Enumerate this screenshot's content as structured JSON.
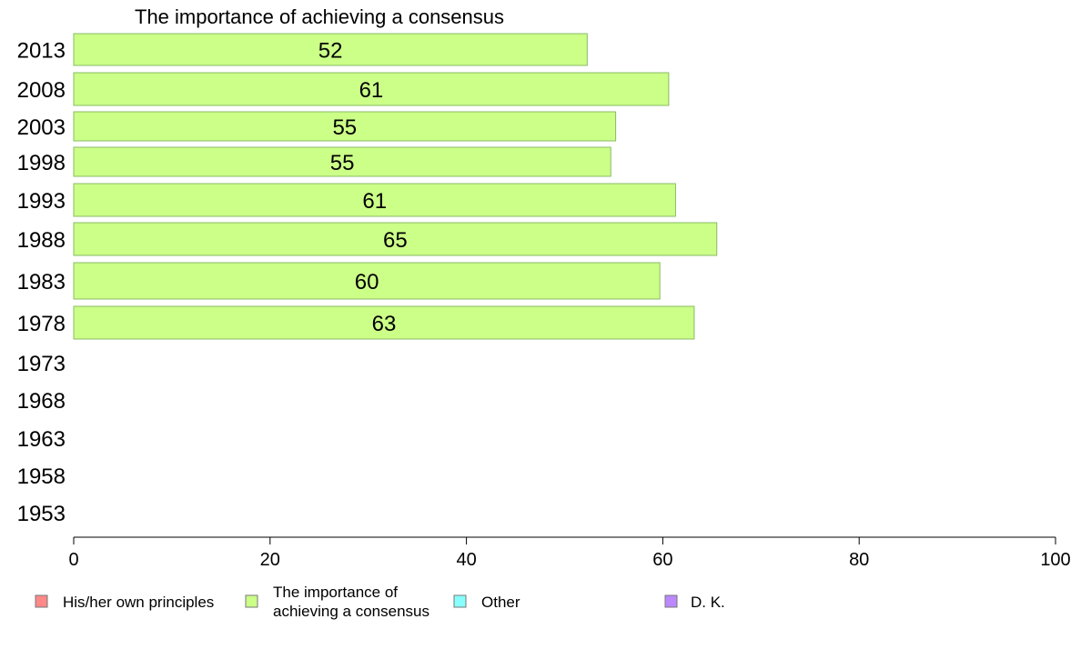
{
  "chart_data": {
    "type": "bar",
    "orientation": "horizontal",
    "title": "The importance of achieving a consensus",
    "categories": [
      "2013",
      "2008",
      "2003",
      "1998",
      "1993",
      "1988",
      "1983",
      "1978",
      "1973",
      "1968",
      "1963",
      "1958",
      "1953"
    ],
    "series": [
      {
        "name": "The importance of achieving a consensus",
        "color": "#ccff88",
        "values": [
          52.3,
          60.6,
          55.2,
          54.7,
          61.3,
          65.5,
          59.7,
          63.2,
          null,
          null,
          null,
          null,
          null
        ],
        "labels": [
          "52",
          "61",
          "55",
          "55",
          "61",
          "65",
          "60",
          "63",
          null,
          null,
          null,
          null,
          null
        ]
      }
    ],
    "xlim": [
      0,
      100
    ],
    "xticks": [
      0,
      20,
      40,
      60,
      80,
      100
    ],
    "grid": false,
    "legend_position": "bottom",
    "legend": [
      {
        "lines": [
          "His/her own principles"
        ],
        "color": "#ff8888"
      },
      {
        "lines": [
          "The importance of",
          "achieving a consensus"
        ],
        "color": "#ccff88"
      },
      {
        "lines": [
          "Other"
        ],
        "color": "#88ffff"
      },
      {
        "lines": [
          "D. K."
        ],
        "color": "#bb88ff"
      }
    ]
  }
}
